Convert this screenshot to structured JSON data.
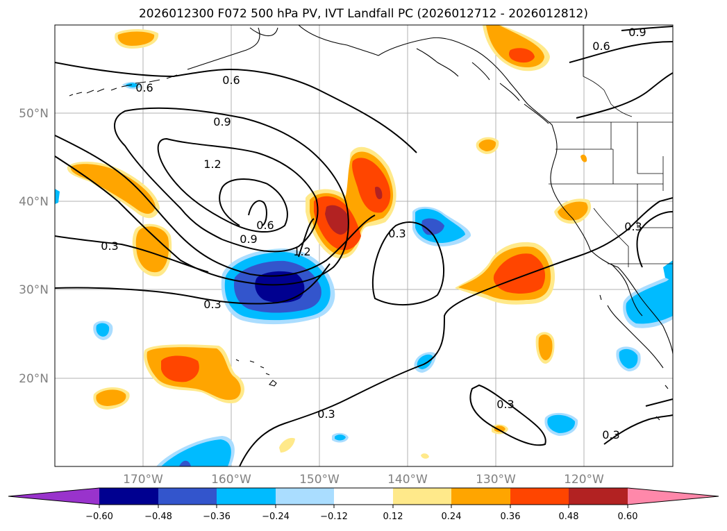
{
  "title": "2026012300 F072 500 hPa PV, IVT Landfall PC (2026012712 - 2026012812)",
  "map": {
    "lat_labels": [
      "50°N",
      "40°N",
      "30°N",
      "20°N"
    ],
    "lon_labels": [
      "170°W",
      "160°W",
      "150°W",
      "140°W",
      "130°W",
      "120°W"
    ],
    "grid": true,
    "extent": {
      "lon": [
        -180,
        -110
      ],
      "lat": [
        10,
        60
      ]
    }
  },
  "contour_labels": {
    "l1": "0.6",
    "l2": "0.6",
    "l3": "0.6",
    "l4": "0.9",
    "l5": "0.9",
    "l6": "1.2",
    "l7": "0.6",
    "l8": "0.9",
    "l9": "1.2",
    "l10": "0.3",
    "l11": "0.3",
    "l12": "0.3",
    "l13": "0.3",
    "l14": "0.3",
    "l15": "0.3",
    "l16": "0.3"
  },
  "colorbar": {
    "ticks": [
      "−0.60",
      "−0.48",
      "−0.36",
      "−0.24",
      "−0.12",
      "0.12",
      "0.24",
      "0.36",
      "0.48",
      "0.60"
    ],
    "colors": [
      "#9933cc",
      "#000090",
      "#3355cc",
      "#00bbff",
      "#aaddff",
      "#ffffff",
      "#ffe98a",
      "#ffa500",
      "#ff4500",
      "#b22222",
      "#ff88aa"
    ],
    "extend": "both"
  }
}
